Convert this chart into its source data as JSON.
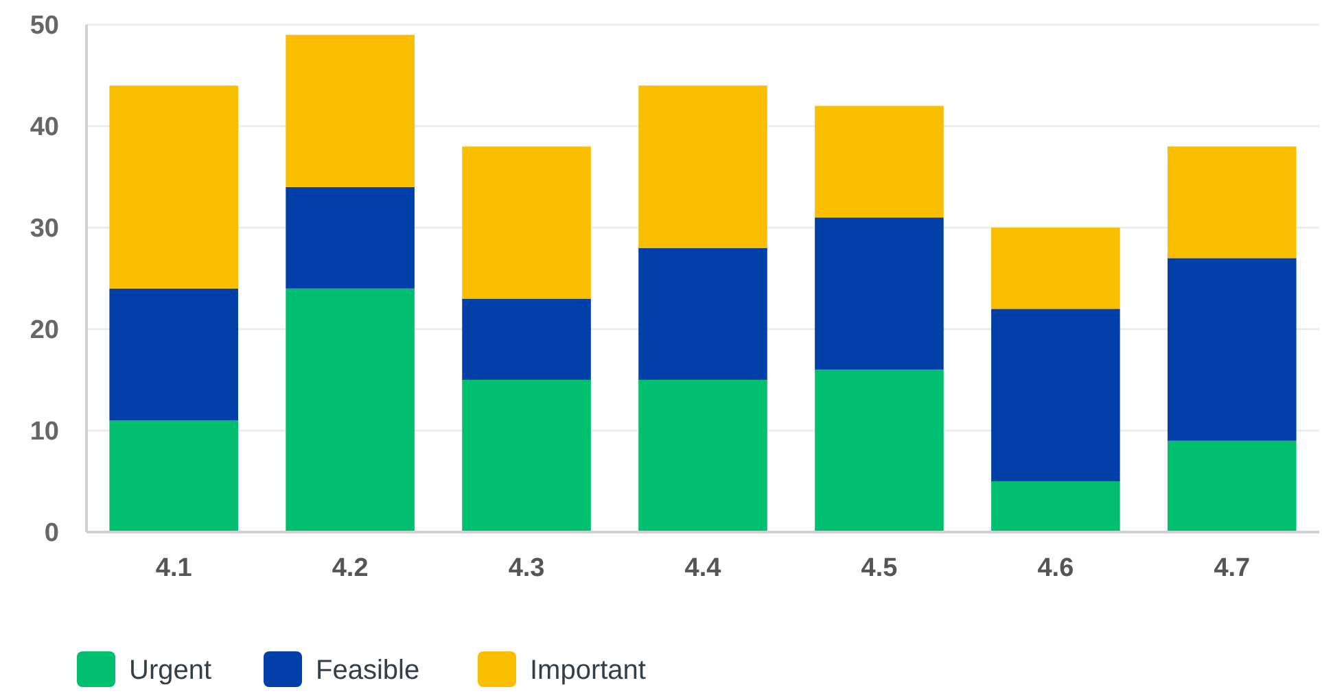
{
  "chart_data": {
    "type": "bar",
    "stacked": true,
    "categories": [
      "4.1",
      "4.2",
      "4.3",
      "4.4",
      "4.5",
      "4.6",
      "4.7"
    ],
    "series": [
      {
        "name": "Urgent",
        "color": "#00bf6f",
        "values": [
          11,
          24,
          15,
          15,
          16,
          5,
          9
        ]
      },
      {
        "name": "Feasible",
        "color": "#0040a8",
        "values": [
          13,
          10,
          8,
          13,
          15,
          17,
          18
        ]
      },
      {
        "name": "Important",
        "color": "#f9be00",
        "values": [
          20,
          15,
          15,
          16,
          11,
          8,
          11
        ]
      }
    ],
    "ylim": [
      0,
      50
    ],
    "yticks": [
      0,
      10,
      20,
      30,
      40,
      50
    ],
    "grid": "y",
    "legend": "bottom left"
  }
}
